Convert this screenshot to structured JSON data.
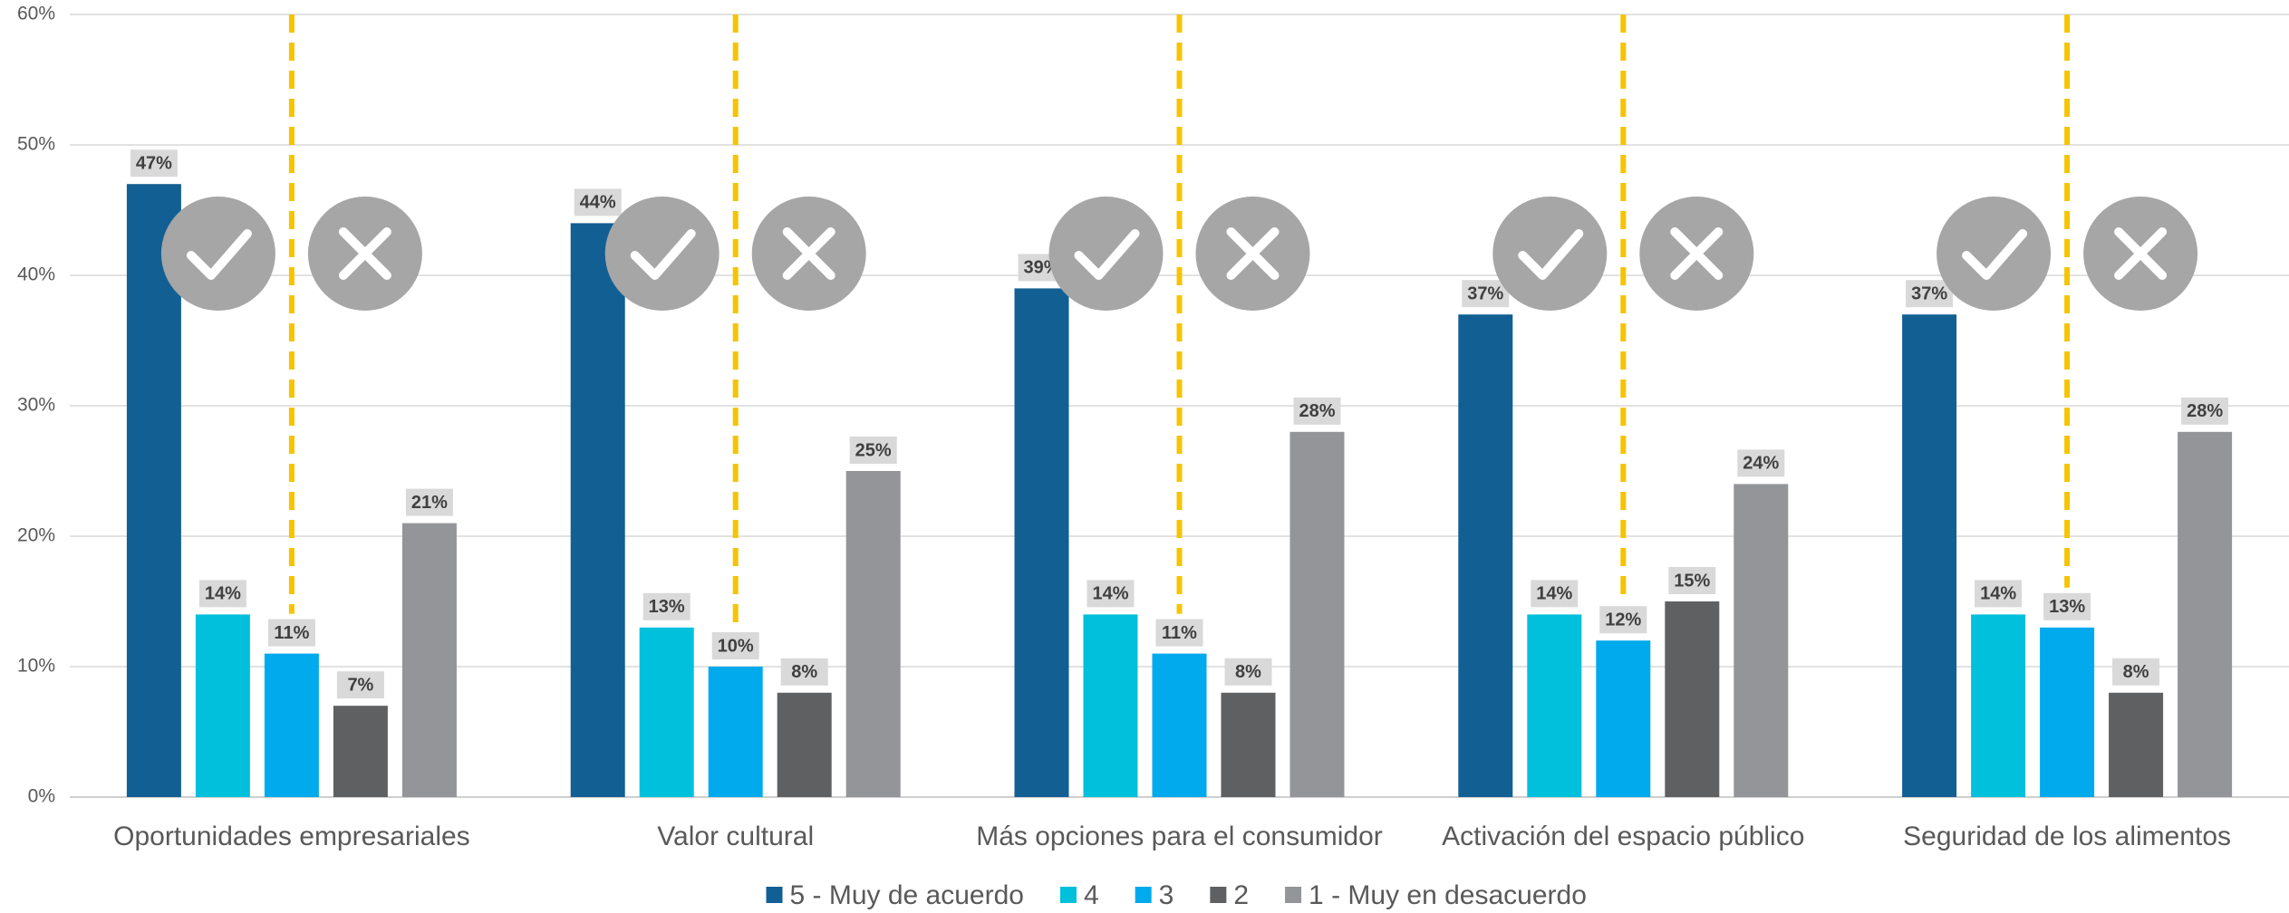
{
  "chart_data": {
    "type": "bar",
    "categories": [
      "Oportunidades empresariales",
      "Valor cultural",
      "Más opciones para el consumidor",
      "Activación del espacio público",
      "Seguridad de los alimentos"
    ],
    "series": [
      {
        "name": "5 - Muy de acuerdo",
        "color": "#125f93",
        "values": [
          47,
          44,
          39,
          37,
          37
        ],
        "value_labels": [
          "47%",
          "44%",
          "39%",
          "37%",
          "37%"
        ]
      },
      {
        "name": "4",
        "color": "#00c0dc",
        "values": [
          14,
          13,
          14,
          14,
          14
        ],
        "value_labels": [
          "14%",
          "13%",
          "14%",
          "14%",
          "14%"
        ]
      },
      {
        "name": "3",
        "color": "#00aaec",
        "values": [
          11,
          10,
          11,
          12,
          13
        ],
        "value_labels": [
          "11%",
          "10%",
          "11%",
          "12%",
          "13%"
        ]
      },
      {
        "name": "2",
        "color": "#5f6062",
        "values": [
          7,
          8,
          8,
          15,
          8
        ],
        "value_labels": [
          "7%",
          "8%",
          "8%",
          "15%",
          "8%"
        ]
      },
      {
        "name": "1 - Muy en desacuerdo",
        "color": "#939598",
        "values": [
          21,
          25,
          28,
          24,
          28
        ],
        "value_labels": [
          "21%",
          "25%",
          "28%",
          "24%",
          "28%"
        ]
      }
    ],
    "ylim": [
      0,
      60
    ],
    "yticks": [
      {
        "value": 0,
        "label": "0%"
      },
      {
        "value": 10,
        "label": "10%"
      },
      {
        "value": 20,
        "label": "20%"
      },
      {
        "value": 30,
        "label": "30%"
      },
      {
        "value": 40,
        "label": "40%"
      },
      {
        "value": 50,
        "label": "50%"
      },
      {
        "value": 60,
        "label": "60%"
      }
    ],
    "grid": true,
    "legend": "bottom"
  }
}
